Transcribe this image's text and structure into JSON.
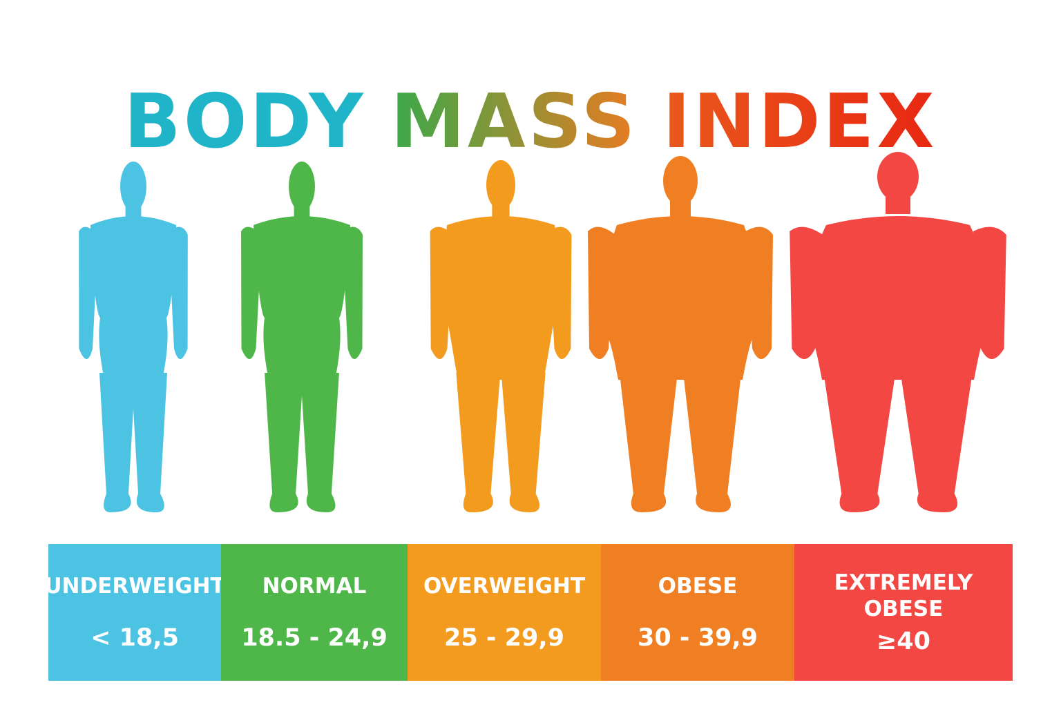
{
  "title": {
    "words": [
      "BODY",
      "MASS",
      "INDEX"
    ],
    "colors": {
      "body": "#1fb4c8",
      "mass_start": "#3aa94a",
      "mass_end": "#e87b22",
      "index_start": "#e9591c",
      "index_end": "#e82712"
    }
  },
  "categories": [
    {
      "label": "UNDERWEIGHT",
      "range": "< 18,5",
      "color": "#4cc3e3",
      "figure_icon": "person-silhouette-underweight-icon"
    },
    {
      "label": "NORMAL",
      "range": "18.5 - 24,9",
      "color": "#4fb74a",
      "figure_icon": "person-silhouette-normal-icon"
    },
    {
      "label": "OVERWEIGHT",
      "range": "25 - 29,9",
      "color": "#f39b1f",
      "figure_icon": "person-silhouette-overweight-icon"
    },
    {
      "label": "OBESE",
      "range": "30 - 39,9",
      "color": "#ef7f22",
      "figure_icon": "person-silhouette-obese-icon"
    },
    {
      "label": "EXTREMELY OBESE",
      "range": "≥40",
      "color": "#f24742",
      "figure_icon": "person-silhouette-extremely-obese-icon"
    }
  ]
}
